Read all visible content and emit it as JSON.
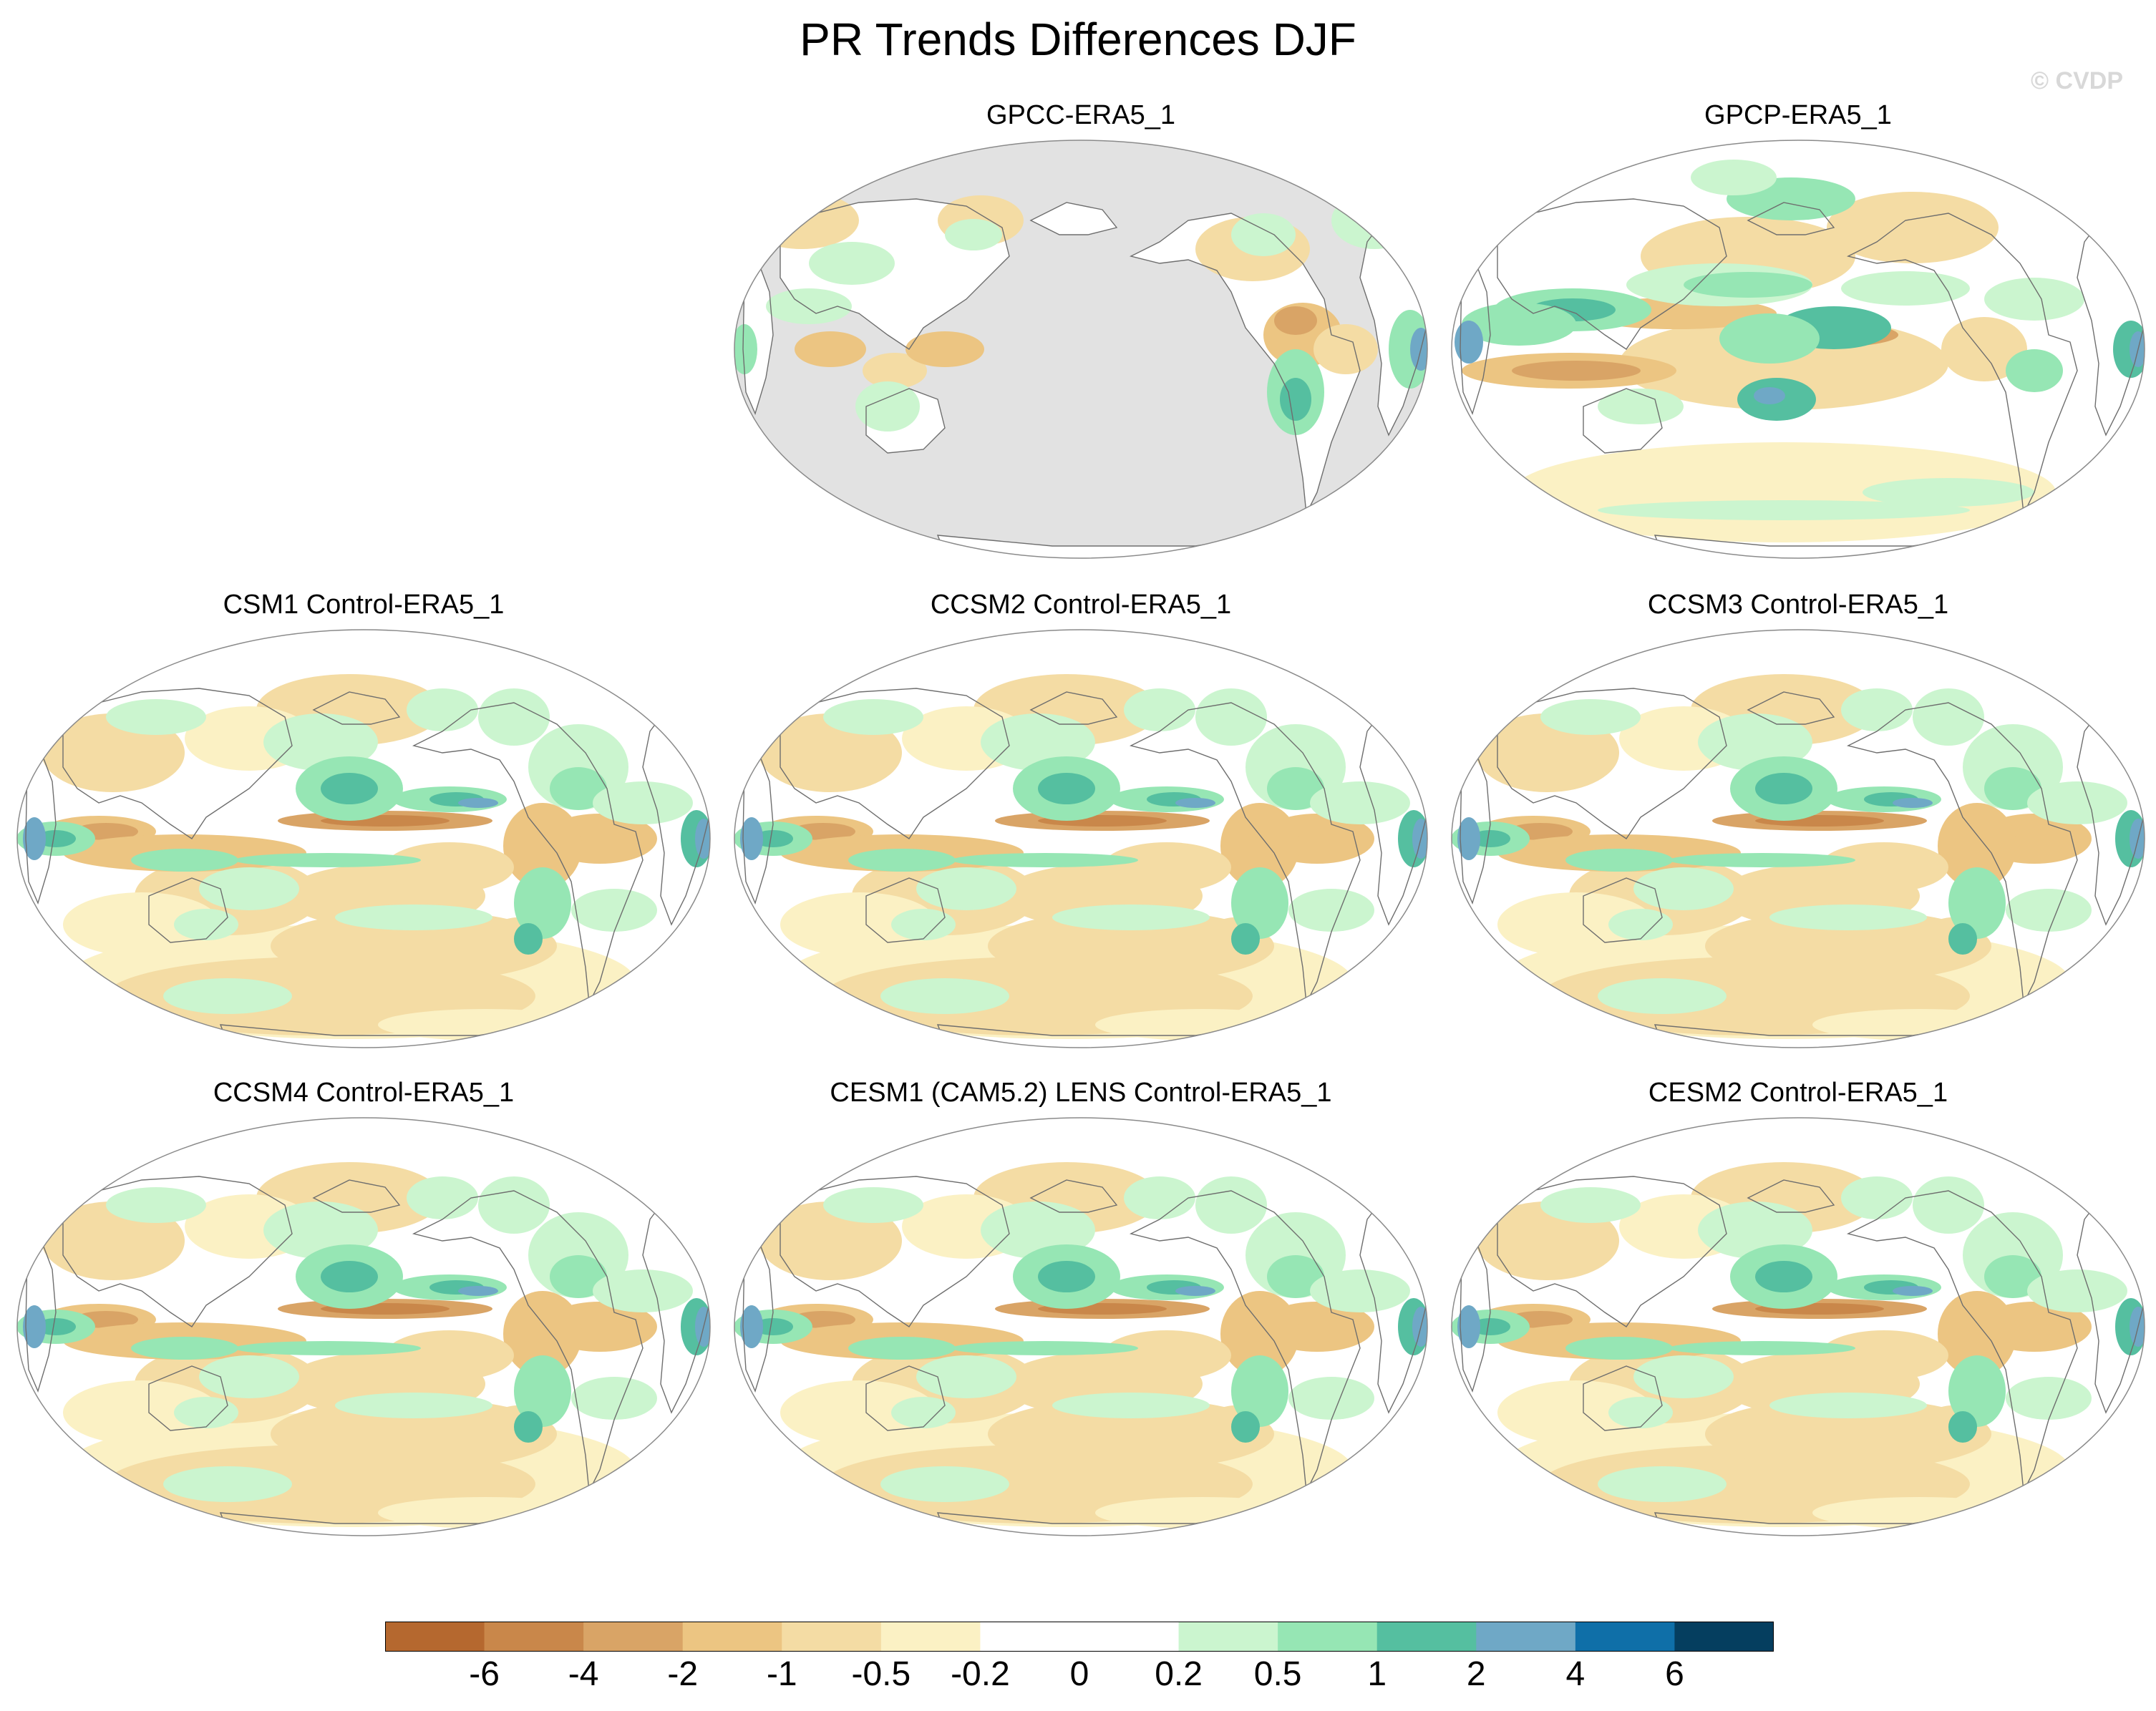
{
  "title": "PR Trends Differences DJF",
  "watermark": "© CVDP",
  "panels": [
    {
      "title": "GPCC-ERA5_1",
      "variant": "gpcc"
    },
    {
      "title": "GPCP-ERA5_1",
      "variant": "gpcp"
    },
    {
      "title": "CSM1 Control-ERA5_1",
      "variant": "model"
    },
    {
      "title": "CCSM2 Control-ERA5_1",
      "variant": "model"
    },
    {
      "title": "CCSM3 Control-ERA5_1",
      "variant": "model"
    },
    {
      "title": "CCSM4 Control-ERA5_1",
      "variant": "model"
    },
    {
      "title": "CESM1 (CAM5.2) LENS Control-ERA5_1",
      "variant": "model"
    },
    {
      "title": "CESM2 Control-ERA5_1",
      "variant": "model"
    }
  ],
  "colorbar": {
    "colors": [
      "#b5682f",
      "#c9874a",
      "#d9a466",
      "#ecc582",
      "#f4dca4",
      "#fbf1c4",
      "#ffffff",
      "#ffffff",
      "#cbf5cf",
      "#96e6b4",
      "#55bfa0",
      "#6fa8c6",
      "#0f6fa8",
      "#053e5f"
    ],
    "labels": [
      "-6",
      "-4",
      "-2",
      "-1",
      "-0.5",
      "-0.2",
      "0",
      "0.2",
      "0.5",
      "1",
      "2",
      "4",
      "6"
    ]
  }
}
